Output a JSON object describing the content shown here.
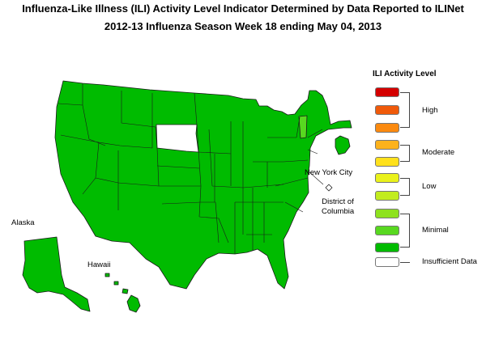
{
  "title_line1": "Influenza-Like Illness (ILI) Activity Level Indicator Determined by Data Reported to ILINet",
  "title_line2": "2012-13  Influenza Season Week  18 ending May 04, 2013",
  "legend": {
    "title": "ILI Activity Level",
    "levels": [
      {
        "color": "#d40000"
      },
      {
        "color": "#f05a0a"
      },
      {
        "color": "#fb8a10"
      },
      {
        "color": "#fcb21c"
      },
      {
        "color": "#ffe11c"
      },
      {
        "color": "#eaf21c"
      },
      {
        "color": "#c2ec1e"
      },
      {
        "color": "#8ee21e"
      },
      {
        "color": "#58d820"
      },
      {
        "color": "#00bb00"
      },
      {
        "color": "#ffffff"
      }
    ],
    "groups": [
      {
        "label": "High"
      },
      {
        "label": "Moderate"
      },
      {
        "label": "Low"
      },
      {
        "label": "Minimal"
      },
      {
        "label": "Insufficient Data"
      }
    ]
  },
  "map_labels": {
    "alaska": "Alaska",
    "hawaii": "Hawaii",
    "new_york_city": "New York City",
    "dc_line1": "District of",
    "dc_line2": "Columbia"
  },
  "colors": {
    "minimal_green": "#00bb00",
    "light_green": "#58d820",
    "insufficient": "#ffffff"
  }
}
